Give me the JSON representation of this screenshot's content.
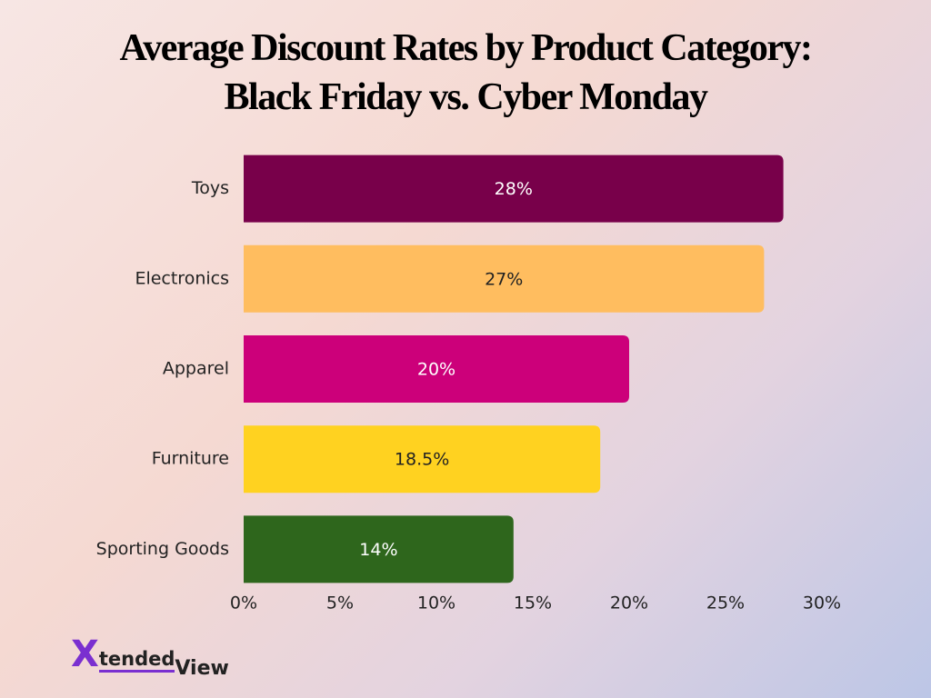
{
  "chart_data": {
    "type": "hbar",
    "title": "Average Discount Rates by Product Category: Black Friday vs. Cyber Monday",
    "categories": [
      "Toys",
      "Electronics",
      "Apparel",
      "Furniture",
      "Sporting Goods"
    ],
    "values": [
      28,
      27,
      20,
      18.5,
      14
    ],
    "value_labels": [
      "28%",
      "27%",
      "20%",
      "18.5%",
      "14%"
    ],
    "colors": [
      "#78004a",
      "#ffbd5f",
      "#cc007a",
      "#ffd220",
      "#2e661c"
    ],
    "xlim": [
      0,
      30
    ],
    "xticks": [
      {
        "value": 0,
        "label": "0%"
      },
      {
        "value": 5,
        "label": "5%"
      },
      {
        "value": 10,
        "label": "10%"
      },
      {
        "value": 15,
        "label": "15%"
      },
      {
        "value": 20,
        "label": "20%"
      },
      {
        "value": 25,
        "label": "25%"
      },
      {
        "value": 30,
        "label": "30%"
      }
    ],
    "grid": false
  },
  "logo": {
    "mark": "X",
    "text": "tended",
    "text2": "View"
  }
}
